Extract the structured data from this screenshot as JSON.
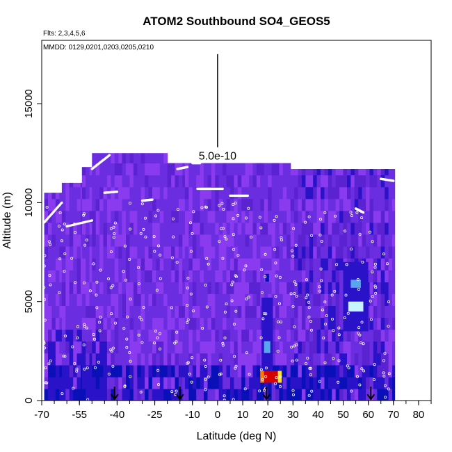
{
  "chart_data": {
    "type": "heatmap",
    "title": "ATOM2 Southbound SO4_GEOS5",
    "flights_label": "Flts: 2,3,4,5,6",
    "dates_label": "MMDD: 0129,0201,0203,0205,0210",
    "xlabel": "Latitude (deg N)",
    "ylabel": "Altitude (m)",
    "xlim": [
      -70,
      85
    ],
    "ylim": [
      0,
      18200
    ],
    "x_ticks": [
      -70,
      -55,
      -40,
      -25,
      -10,
      0,
      10,
      20,
      30,
      40,
      50,
      60,
      70,
      80
    ],
    "y_ticks": [
      0,
      5000,
      10000,
      15000
    ],
    "scale_bar_label": "5.0e-10",
    "scale_bar": {
      "x": 0,
      "y_from": 12800,
      "y_to": 17500
    },
    "arrows_lat": [
      -41,
      -15,
      19.5,
      61
    ],
    "colors": {
      "base": "#6a2ee0",
      "violet": "#8a3aef",
      "purple": "#5b22d2",
      "blue": "#2a12c8",
      "deepblue": "#0a10b8",
      "lightblue": "#5aa6ee",
      "cyan": "#c8f4ff",
      "yellow": "#ffe233",
      "orange": "#ff7a00",
      "red": "#d40000",
      "point": "#ffffff"
    },
    "columns": [
      {
        "lat_from": -69,
        "lat_to": -62,
        "alt_top": 10500
      },
      {
        "lat_from": -62,
        "lat_to": -54,
        "alt_top": 11000
      },
      {
        "lat_from": -54,
        "lat_to": -50,
        "alt_top": 11800
      },
      {
        "lat_from": -50,
        "lat_to": -20,
        "alt_top": 12500
      },
      {
        "lat_from": -20,
        "lat_to": -13,
        "alt_top": 12000
      },
      {
        "lat_from": -13,
        "lat_to": 29,
        "alt_top": 12000
      },
      {
        "lat_from": 29,
        "lat_to": 70.5,
        "alt_top": 11700
      }
    ],
    "hotspots": [
      {
        "lat_from": 18.5,
        "lat_to": 24,
        "alt_from": 900,
        "alt_to": 1500,
        "level": "red"
      },
      {
        "lat_from": 17,
        "lat_to": 18.5,
        "alt_from": 900,
        "alt_to": 1500,
        "level": "orange"
      },
      {
        "lat_from": 24,
        "lat_to": 25.5,
        "alt_from": 900,
        "alt_to": 1500,
        "level": "yellow"
      },
      {
        "lat_from": 17.5,
        "lat_to": 22,
        "alt_from": 1500,
        "alt_to": 5200,
        "level": "blue"
      },
      {
        "lat_from": 18.5,
        "lat_to": 21,
        "alt_from": 2400,
        "alt_to": 3000,
        "level": "lightblue"
      },
      {
        "lat_from": 19,
        "lat_to": 20.5,
        "alt_from": 6000,
        "alt_to": 6400,
        "level": "deepblue"
      },
      {
        "lat_from": 52,
        "lat_to": 58,
        "alt_from": 4500,
        "alt_to": 5000,
        "level": "cyan"
      },
      {
        "lat_from": 53,
        "lat_to": 57,
        "alt_from": 5700,
        "alt_to": 6100,
        "level": "lightblue"
      },
      {
        "lat_from": 50,
        "lat_to": 60,
        "alt_from": 3500,
        "alt_to": 7000,
        "level": "blue"
      }
    ]
  }
}
